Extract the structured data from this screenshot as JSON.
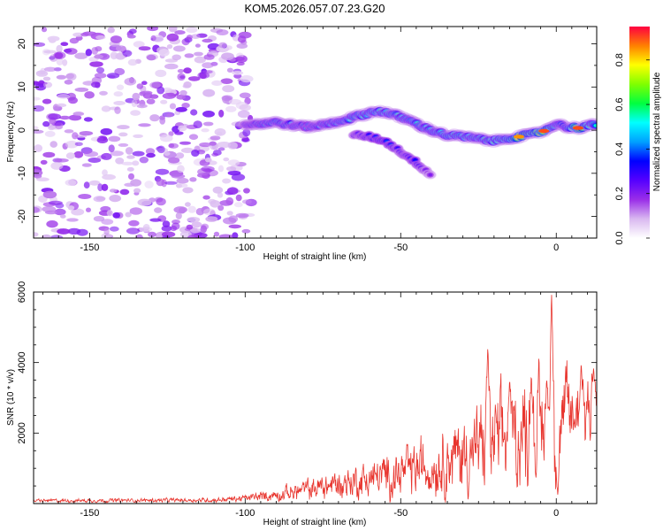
{
  "title": "KOM5.2026.057.07.23.G20",
  "chart_data": [
    {
      "type": "heatmap",
      "name": "spectrogram",
      "xlabel": "Height of straight line (km)",
      "ylabel": "Frequency (Hz)",
      "xlim": [
        -168,
        13
      ],
      "ylim": [
        -25,
        24
      ],
      "xticks": [
        -150,
        -100,
        -50,
        0
      ],
      "yticks": [
        -20,
        -10,
        0,
        10,
        20
      ],
      "colorbar": {
        "label": "Normalized spectral amplitude",
        "range": [
          0,
          0.95
        ],
        "ticks": [
          0.0,
          0.2,
          0.4,
          0.6,
          0.8
        ],
        "tick_labels": [
          "0.0",
          "0.2",
          "0.4",
          "0.6",
          "0.8"
        ],
        "colors": [
          "#ffffff",
          "#d9b8f0",
          "#9a2ee8",
          "#5500ff",
          "#0000ff",
          "#00a0ff",
          "#00ffff",
          "#00ff40",
          "#80ff00",
          "#ffff00",
          "#ff8000",
          "#ff0040"
        ]
      },
      "noise_region": {
        "x_range": [
          -168,
          -98
        ],
        "y_range": [
          -25,
          24
        ],
        "amplitude": [
          0.05,
          0.22
        ]
      },
      "signal_track": [
        {
          "x": -100,
          "y": 1.2,
          "amp": 0.35
        },
        {
          "x": -95,
          "y": 1.5,
          "amp": 0.45
        },
        {
          "x": -90,
          "y": 1.8,
          "amp": 0.5
        },
        {
          "x": -85,
          "y": 1.2,
          "amp": 0.45
        },
        {
          "x": -80,
          "y": 0.8,
          "amp": 0.4
        },
        {
          "x": -75,
          "y": 1.2,
          "amp": 0.45
        },
        {
          "x": -70,
          "y": 2.0,
          "amp": 0.5
        },
        {
          "x": -65,
          "y": 3.0,
          "amp": 0.55
        },
        {
          "x": -60,
          "y": 4.0,
          "amp": 0.55
        },
        {
          "x": -57,
          "y": 4.5,
          "amp": 0.6
        },
        {
          "x": -52,
          "y": 3.5,
          "amp": 0.55
        },
        {
          "x": -48,
          "y": 2.5,
          "amp": 0.5
        },
        {
          "x": -45,
          "y": 1.5,
          "amp": 0.55
        },
        {
          "x": -42,
          "y": 0.5,
          "amp": 0.5
        },
        {
          "x": -38,
          "y": -0.5,
          "amp": 0.55
        },
        {
          "x": -35,
          "y": -1.2,
          "amp": 0.6
        },
        {
          "x": -30,
          "y": -1.5,
          "amp": 0.6
        },
        {
          "x": -25,
          "y": -2.0,
          "amp": 0.55
        },
        {
          "x": -20,
          "y": -2.5,
          "amp": 0.6
        },
        {
          "x": -15,
          "y": -1.8,
          "amp": 0.65
        },
        {
          "x": -12,
          "y": -1.5,
          "amp": 0.85
        },
        {
          "x": -8,
          "y": -1.0,
          "amp": 0.7
        },
        {
          "x": -4,
          "y": -0.2,
          "amp": 0.9
        },
        {
          "x": 0,
          "y": 1.5,
          "amp": 0.5
        },
        {
          "x": 3,
          "y": 0.8,
          "amp": 0.45
        },
        {
          "x": 7,
          "y": 0.5,
          "amp": 0.9
        },
        {
          "x": 11,
          "y": 1.2,
          "amp": 0.6
        },
        {
          "x": 13,
          "y": 1.0,
          "amp": 0.5
        }
      ],
      "side_branch": [
        {
          "x": -65,
          "y": -1,
          "amp": 0.3
        },
        {
          "x": -60,
          "y": -1.5,
          "amp": 0.35
        },
        {
          "x": -55,
          "y": -2.5,
          "amp": 0.4
        },
        {
          "x": -50,
          "y": -5,
          "amp": 0.3
        },
        {
          "x": -45,
          "y": -7.5,
          "amp": 0.35
        },
        {
          "x": -40,
          "y": -10.5,
          "amp": 0.2
        }
      ]
    },
    {
      "type": "line",
      "name": "snr",
      "xlabel": "Height of straight line (km)",
      "ylabel": "SNR (10 * v/v)",
      "xlim": [
        -168,
        13
      ],
      "ylim": [
        0,
        6000
      ],
      "xticks": [
        -150,
        -100,
        -50,
        0
      ],
      "yticks": [
        2000,
        4000,
        6000
      ],
      "color": "#e8352e",
      "envelope": [
        {
          "x": -168,
          "base": 80,
          "noise": 40
        },
        {
          "x": -110,
          "base": 100,
          "noise": 50
        },
        {
          "x": -100,
          "base": 150,
          "noise": 80
        },
        {
          "x": -90,
          "base": 250,
          "noise": 150
        },
        {
          "x": -80,
          "base": 400,
          "noise": 250
        },
        {
          "x": -70,
          "base": 550,
          "noise": 350
        },
        {
          "x": -60,
          "base": 700,
          "noise": 450
        },
        {
          "x": -50,
          "base": 850,
          "noise": 550
        },
        {
          "x": -40,
          "base": 1100,
          "noise": 700
        },
        {
          "x": -30,
          "base": 1400,
          "noise": 900
        },
        {
          "x": -20,
          "base": 1700,
          "noise": 1100
        },
        {
          "x": -10,
          "base": 2000,
          "noise": 1200
        },
        {
          "x": 0,
          "base": 2300,
          "noise": 1200
        },
        {
          "x": 13,
          "base": 2900,
          "noise": 900
        }
      ],
      "peaks": [
        {
          "x": -22,
          "y": 4500
        },
        {
          "x": -15,
          "y": 3500
        },
        {
          "x": -8,
          "y": 3700
        },
        {
          "x": -3,
          "y": 3500
        },
        {
          "x": -1.5,
          "y": 6000
        },
        {
          "x": 0.5,
          "y": 200
        },
        {
          "x": 8,
          "y": 4000
        },
        {
          "x": 12,
          "y": 3900
        }
      ]
    }
  ]
}
